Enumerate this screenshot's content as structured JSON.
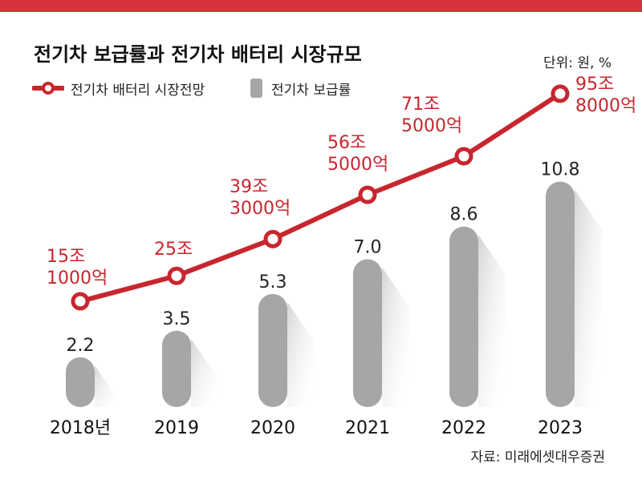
{
  "title": "전기차 보급률과 전기차 배터리 시장규모",
  "unit": "단위: 원, %",
  "source": "자료: 미래에셋대우증권",
  "colors": {
    "line": "#c8262e",
    "bar": "#a6a6a6",
    "topbar": "#d6333a"
  },
  "chart_data": {
    "type": "bar+line",
    "categories": [
      "2018년",
      "2019",
      "2020",
      "2021",
      "2022",
      "2023"
    ],
    "series": [
      {
        "name": "전기차 배터리 시장전망",
        "type": "line",
        "values_won_eok": [
          151000,
          250000,
          393000,
          565000,
          715000,
          958000
        ],
        "labels": [
          [
            "15조",
            "1000억"
          ],
          [
            "25조"
          ],
          [
            "39조",
            "3000억"
          ],
          [
            "56조",
            "5000억"
          ],
          [
            "71조",
            "5000억"
          ],
          [
            "95조",
            "8000억"
          ]
        ]
      },
      {
        "name": "전기차 보급률",
        "type": "bar",
        "unit": "%",
        "values": [
          2.2,
          3.5,
          5.3,
          7.0,
          8.6,
          10.8
        ],
        "labels": [
          "2.2",
          "3.5",
          "5.3",
          "7.0",
          "8.6",
          "10.8"
        ]
      }
    ]
  }
}
